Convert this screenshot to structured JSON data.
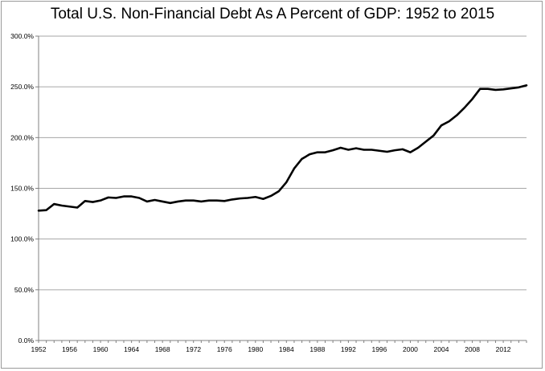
{
  "chart_data": {
    "type": "line",
    "title": "Total U.S. Non-Financial Debt As A Percent of GDP:  1952 to 2015",
    "xlabel": "",
    "ylabel": "",
    "xlim": [
      1952,
      2015
    ],
    "ylim": [
      0,
      300
    ],
    "y_tick_values": [
      0,
      50,
      100,
      150,
      200,
      250,
      300
    ],
    "y_tick_labels": [
      "0.0%",
      "50.0%",
      "100.0%",
      "150.0%",
      "200.0%",
      "250.0%",
      "300.0%"
    ],
    "x_tick_values": [
      1952,
      1956,
      1960,
      1964,
      1968,
      1972,
      1976,
      1980,
      1984,
      1988,
      1992,
      1996,
      2000,
      2004,
      2008,
      2012
    ],
    "x_tick_labels": [
      "1952",
      "1956",
      "1960",
      "1964",
      "1968",
      "1972",
      "1976",
      "1980",
      "1984",
      "1988",
      "1992",
      "1996",
      "2000",
      "2004",
      "2008",
      "2012"
    ],
    "grid": {
      "horizontal": true,
      "vertical": false
    },
    "legend": "none",
    "line_color": "#000000",
    "grid_color": "#a6a6a6",
    "series": [
      {
        "x": [
          1952,
          1953,
          1954,
          1955,
          1956,
          1957,
          1958,
          1959,
          1960,
          1961,
          1962,
          1963,
          1964,
          1965,
          1966,
          1967,
          1968,
          1969,
          1970,
          1971,
          1972,
          1973,
          1974,
          1975,
          1976,
          1977,
          1978,
          1979,
          1980,
          1981,
          1982,
          1983,
          1984,
          1985,
          1986,
          1987,
          1988,
          1989,
          1990,
          1991,
          1992,
          1993,
          1994,
          1995,
          1996,
          1997,
          1998,
          1999,
          2000,
          2001,
          2002,
          2003,
          2004,
          2005,
          2006,
          2007,
          2008,
          2009,
          2010,
          2011,
          2012,
          2013,
          2014,
          2015
        ],
        "values": [
          128,
          128.5,
          134.5,
          133,
          132,
          131,
          137.5,
          136.5,
          138,
          141,
          140.5,
          142,
          142,
          140.5,
          137,
          138.5,
          137,
          135.5,
          137,
          138,
          138,
          137,
          138,
          138,
          137.5,
          139,
          140,
          140.5,
          141.5,
          139.5,
          142.5,
          147,
          156,
          169.5,
          179,
          183.5,
          185.5,
          185.5,
          187.5,
          190,
          188,
          189.5,
          188,
          188,
          187,
          186,
          187.5,
          188.5,
          185.5,
          190,
          196,
          202,
          212,
          216,
          222,
          229.5,
          238,
          248,
          248,
          247,
          247.5,
          248.5,
          249.5,
          251.5
        ]
      }
    ]
  }
}
